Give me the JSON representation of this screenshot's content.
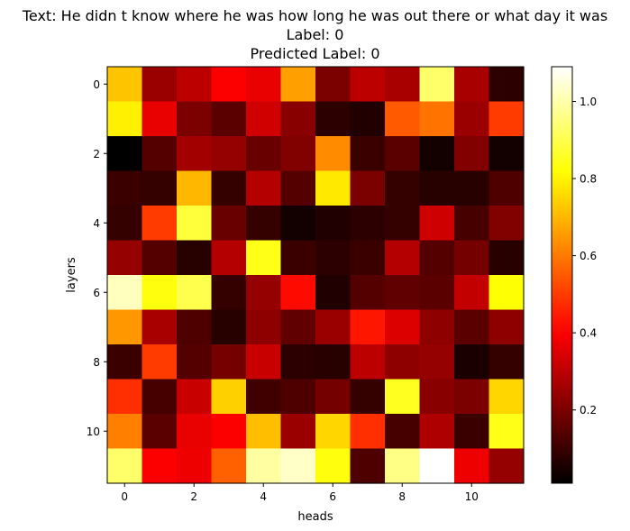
{
  "chart_data": {
    "type": "heatmap",
    "title_lines": [
      "Text: He didn t know where he was how long he was out there or what day it was",
      "Label: 0",
      "Predicted Label: 0"
    ],
    "xlabel": "heads",
    "ylabel": "layers",
    "x_ticks": [
      0,
      2,
      4,
      6,
      8,
      10
    ],
    "y_ticks": [
      0,
      2,
      4,
      6,
      8,
      10
    ],
    "colormap": "hot",
    "colorbar": {
      "vmin": 0.01,
      "vmax": 1.09,
      "ticks": [
        0.2,
        0.4,
        0.6,
        0.8,
        1.0
      ],
      "tick_labels": [
        "0.2",
        "0.4",
        "0.6",
        "0.8",
        "1.0"
      ]
    },
    "values": [
      [
        0.72,
        0.25,
        0.3,
        0.4,
        0.37,
        0.66,
        0.2,
        0.3,
        0.27,
        0.93,
        0.27,
        0.08
      ],
      [
        0.79,
        0.37,
        0.2,
        0.15,
        0.33,
        0.22,
        0.08,
        0.06,
        0.55,
        0.59,
        0.25,
        0.5
      ],
      [
        0.01,
        0.14,
        0.26,
        0.24,
        0.17,
        0.21,
        0.63,
        0.1,
        0.15,
        0.04,
        0.21,
        0.04
      ],
      [
        0.1,
        0.09,
        0.7,
        0.09,
        0.29,
        0.14,
        0.78,
        0.2,
        0.09,
        0.07,
        0.07,
        0.13
      ],
      [
        0.09,
        0.5,
        0.88,
        0.17,
        0.09,
        0.04,
        0.06,
        0.08,
        0.09,
        0.33,
        0.12,
        0.21
      ],
      [
        0.24,
        0.14,
        0.07,
        0.29,
        0.84,
        0.1,
        0.08,
        0.1,
        0.29,
        0.14,
        0.19,
        0.07
      ],
      [
        1.02,
        0.83,
        0.9,
        0.09,
        0.24,
        0.42,
        0.06,
        0.14,
        0.16,
        0.15,
        0.31,
        0.82
      ],
      [
        0.65,
        0.27,
        0.13,
        0.07,
        0.23,
        0.16,
        0.25,
        0.44,
        0.35,
        0.23,
        0.15,
        0.23
      ],
      [
        0.1,
        0.5,
        0.14,
        0.19,
        0.32,
        0.08,
        0.07,
        0.3,
        0.23,
        0.24,
        0.05,
        0.09
      ],
      [
        0.48,
        0.12,
        0.32,
        0.74,
        0.11,
        0.13,
        0.19,
        0.09,
        0.85,
        0.22,
        0.2,
        0.75
      ],
      [
        0.61,
        0.15,
        0.37,
        0.4,
        0.71,
        0.25,
        0.75,
        0.48,
        0.12,
        0.28,
        0.1,
        0.84
      ],
      [
        0.93,
        0.4,
        0.38,
        0.56,
        0.99,
        1.03,
        0.83,
        0.13,
        0.96,
        1.09,
        0.38,
        0.24
      ]
    ]
  }
}
